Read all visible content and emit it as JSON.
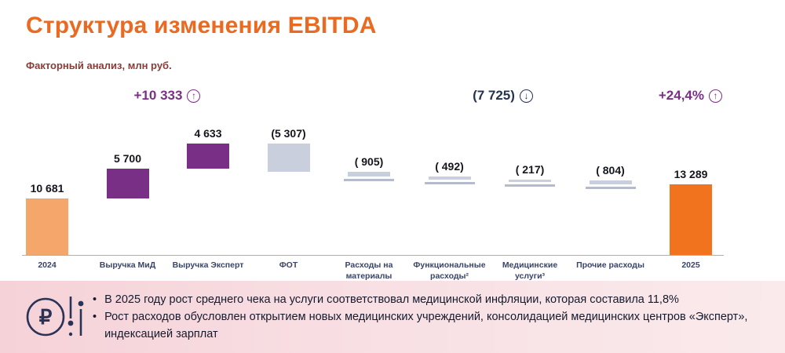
{
  "title": "Структура изменения EBITDA",
  "subtitle": "Факторный анализ, млн руб.",
  "icons": {
    "arrow_up": "↑",
    "arrow_down": "↓"
  },
  "accent_colors": {
    "title_orange": "#E96A20",
    "subtitle_maroon": "#8A3C38",
    "annotation_purple": "#7A2F87",
    "annotation_dark": "#26334F"
  },
  "chart_data": {
    "type": "bar",
    "subtype": "waterfall",
    "title": "Структура изменения EBITDA",
    "units": "млн руб.",
    "categories": [
      "2024",
      "Выручка МиД",
      "Выручка Эксперт",
      "ФОТ",
      "Расходы на материалы",
      "Функциональные расходы²",
      "Медицинские услуги³",
      "Прочие расходы",
      "2025"
    ],
    "values": [
      10681,
      5700,
      4633,
      -5307,
      -905,
      -492,
      -217,
      -804,
      13289
    ],
    "value_labels": [
      "10 681",
      "5 700",
      "4 633",
      "(5 307)",
      "( 905)",
      "( 492)",
      "( 217)",
      "( 804)",
      "13 289"
    ],
    "bar_roles": [
      "total-start",
      "increase",
      "increase",
      "decrease",
      "decrease",
      "decrease",
      "decrease",
      "decrease",
      "total-end"
    ],
    "colors": {
      "total_start": "#F5A66B",
      "increase": "#7A2F87",
      "decrease": "#C9CFDC",
      "total_end": "#F2731D"
    },
    "annotations": [
      {
        "text": "+10 333",
        "arrow": "up"
      },
      {
        "text": "(7 725)",
        "arrow": "down"
      },
      {
        "text": "+24,4%",
        "arrow": "up"
      }
    ],
    "ylim": [
      0,
      22000
    ],
    "grid": false,
    "legend": false
  },
  "footer": {
    "bullets": [
      "В 2025 году рост среднего чека на услуги соответствовал медицинской инфляции, которая составила 11,8%",
      "Рост расходов  обусловлен открытием новых медицинских учреждений, консолидацией медицинских центров «Эксперт», индексацией зарплат"
    ],
    "logo": "ruble-equalizer-logo"
  }
}
